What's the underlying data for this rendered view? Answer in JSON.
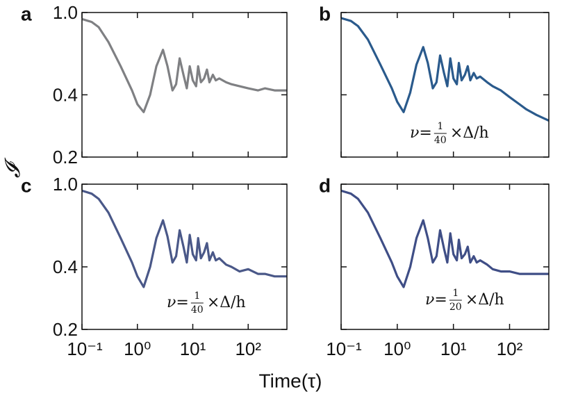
{
  "xlabel": "Time(τ)",
  "ylabel": "𝓘",
  "chart_data": [
    {
      "type": "line",
      "panel": "a",
      "log_x": true,
      "log_y": true,
      "ytick_labels": true,
      "xtick_labels": false,
      "xlim": [
        0.1,
        500
      ],
      "ylim": [
        0.2,
        1.0
      ],
      "xticks": [
        0.1,
        1,
        10,
        100
      ],
      "yticks": [
        0.2,
        0.4,
        {
          "value": 1,
          "label": "1.0"
        }
      ],
      "series": [
        {
          "color": "#7f8083",
          "x": [
            0.1,
            0.15,
            0.2,
            0.3,
            0.5,
            0.8,
            1.0,
            1.3,
            1.7,
            2.2,
            2.9,
            3.5,
            4.3,
            5.0,
            5.8,
            6.8,
            7.8,
            8.8,
            10,
            11.5,
            12.5,
            14,
            16,
            18,
            20,
            23,
            26,
            30,
            40,
            50,
            70,
            100,
            150,
            200,
            300,
            500
          ],
          "values": [
            0.93,
            0.9,
            0.85,
            0.72,
            0.55,
            0.42,
            0.36,
            0.33,
            0.4,
            0.55,
            0.66,
            0.55,
            0.42,
            0.45,
            0.6,
            0.5,
            0.43,
            0.55,
            0.47,
            0.44,
            0.55,
            0.46,
            0.48,
            0.53,
            0.46,
            0.5,
            0.47,
            0.48,
            0.46,
            0.45,
            0.44,
            0.43,
            0.42,
            0.43,
            0.42,
            0.42
          ]
        }
      ]
    },
    {
      "type": "line",
      "panel": "b",
      "log_x": true,
      "log_y": true,
      "ytick_labels": false,
      "xtick_labels": false,
      "xlim": [
        0.1,
        500
      ],
      "ylim": [
        0.2,
        1.0
      ],
      "xticks": [
        0.1,
        1,
        10,
        100
      ],
      "yticks": [
        0.2,
        0.4,
        1
      ],
      "annotation": {
        "prefix": "ν=",
        "numerator": "1",
        "denominator": "40",
        "suffix": "×Δ/h"
      },
      "series": [
        {
          "color": "#2a5a8c",
          "x": [
            0.1,
            0.15,
            0.2,
            0.3,
            0.5,
            0.8,
            1.0,
            1.3,
            1.7,
            2.2,
            2.9,
            3.5,
            4.3,
            5.0,
            5.8,
            6.8,
            7.8,
            8.8,
            10,
            11.5,
            12.5,
            14,
            16,
            18,
            20,
            23,
            26,
            30,
            40,
            50,
            70,
            100,
            150,
            200,
            300,
            500
          ],
          "values": [
            0.94,
            0.91,
            0.86,
            0.74,
            0.56,
            0.43,
            0.37,
            0.33,
            0.41,
            0.56,
            0.68,
            0.57,
            0.43,
            0.46,
            0.62,
            0.51,
            0.44,
            0.6,
            0.48,
            0.45,
            0.57,
            0.47,
            0.5,
            0.55,
            0.47,
            0.51,
            0.48,
            0.49,
            0.46,
            0.44,
            0.42,
            0.39,
            0.36,
            0.34,
            0.32,
            0.3
          ]
        }
      ]
    },
    {
      "type": "line",
      "panel": "c",
      "log_x": true,
      "log_y": true,
      "ytick_labels": true,
      "xtick_labels": true,
      "xlim": [
        0.1,
        500
      ],
      "ylim": [
        0.2,
        1.0
      ],
      "xticks": [
        {
          "value": 0.1,
          "label": "10⁻¹"
        },
        {
          "value": 1,
          "label": "10⁰"
        },
        {
          "value": 10,
          "label": "10¹"
        },
        {
          "value": 100,
          "label": "10²"
        }
      ],
      "yticks": [
        0.2,
        0.4,
        {
          "value": 1,
          "label": "1.0"
        }
      ],
      "annotation": {
        "prefix": "ν=",
        "numerator": "1",
        "denominator": "40",
        "suffix": "×Δ/h"
      },
      "series": [
        {
          "color": "#4a5888",
          "x": [
            0.1,
            0.15,
            0.2,
            0.3,
            0.5,
            0.8,
            1.0,
            1.3,
            1.7,
            2.2,
            2.9,
            3.5,
            4.3,
            5.0,
            5.8,
            6.8,
            7.8,
            8.8,
            10,
            11.5,
            12.5,
            14,
            16,
            18,
            20,
            23,
            26,
            30,
            40,
            50,
            70,
            100,
            150,
            200,
            300,
            500
          ],
          "values": [
            0.93,
            0.9,
            0.85,
            0.73,
            0.55,
            0.42,
            0.36,
            0.32,
            0.4,
            0.55,
            0.67,
            0.56,
            0.42,
            0.45,
            0.6,
            0.5,
            0.42,
            0.57,
            0.46,
            0.43,
            0.55,
            0.44,
            0.47,
            0.52,
            0.43,
            0.47,
            0.43,
            0.44,
            0.41,
            0.4,
            0.38,
            0.39,
            0.37,
            0.37,
            0.36,
            0.36
          ]
        }
      ]
    },
    {
      "type": "line",
      "panel": "d",
      "log_x": true,
      "log_y": true,
      "ytick_labels": false,
      "xtick_labels": true,
      "xlim": [
        0.1,
        500
      ],
      "ylim": [
        0.2,
        1.0
      ],
      "xticks": [
        {
          "value": 0.1,
          "label": "10⁻¹"
        },
        {
          "value": 1,
          "label": "10⁰"
        },
        {
          "value": 10,
          "label": "10¹"
        },
        {
          "value": 100,
          "label": "10²"
        }
      ],
      "yticks": [
        0.2,
        0.4,
        1
      ],
      "annotation": {
        "prefix": "ν=",
        "numerator": "1",
        "denominator": "20",
        "suffix": "×Δ/h"
      },
      "series": [
        {
          "color": "#3f4e86",
          "x": [
            0.1,
            0.15,
            0.2,
            0.3,
            0.5,
            0.8,
            1.0,
            1.3,
            1.7,
            2.2,
            2.9,
            3.5,
            4.3,
            5.0,
            5.8,
            6.8,
            7.8,
            8.8,
            10,
            11.5,
            12.5,
            14,
            16,
            18,
            20,
            23,
            26,
            30,
            40,
            50,
            70,
            100,
            150,
            200,
            300,
            500
          ],
          "values": [
            0.93,
            0.9,
            0.85,
            0.73,
            0.55,
            0.42,
            0.36,
            0.32,
            0.4,
            0.55,
            0.67,
            0.55,
            0.42,
            0.45,
            0.6,
            0.49,
            0.42,
            0.58,
            0.46,
            0.43,
            0.54,
            0.44,
            0.46,
            0.5,
            0.42,
            0.45,
            0.42,
            0.43,
            0.41,
            0.39,
            0.38,
            0.38,
            0.37,
            0.37,
            0.37,
            0.37
          ]
        }
      ]
    }
  ]
}
